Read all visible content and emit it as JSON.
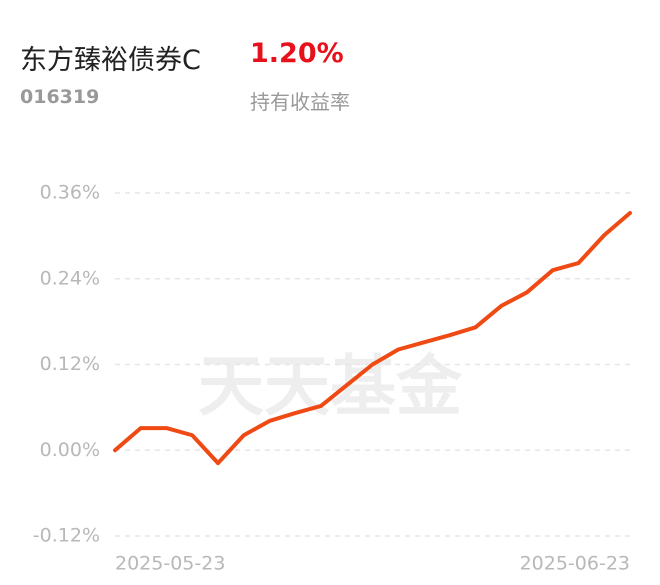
{
  "header": {
    "title": "东方臻裕债券C",
    "return": "1.20%",
    "code": "016319",
    "return_label": "持有收益率"
  },
  "chart_data": {
    "type": "line",
    "watermark": "天天基金",
    "categories": [
      "2025-05-23",
      null,
      null,
      null,
      null,
      null,
      null,
      null,
      null,
      null,
      null,
      null,
      null,
      null,
      null,
      null,
      null,
      null,
      null,
      null,
      "2025-06-23"
    ],
    "series": [
      {
        "color": "#f04a14",
        "values": [
          0,
          0.031,
          0.031,
          0.021,
          -0.018,
          0.021,
          0.041,
          0.052,
          0.062,
          0.091,
          0.12,
          0.141,
          0.151,
          0.161,
          0.172,
          0.202,
          0.221,
          0.252,
          0.262,
          0.301,
          0.332
        ]
      }
    ],
    "ylim": [
      -0.12,
      0.36
    ],
    "yticks": [
      {
        "value": -0.12,
        "label": "-0.12%"
      },
      {
        "value": 0,
        "label": "0.00%"
      },
      {
        "value": 0.12,
        "label": "0.12%"
      },
      {
        "value": 0.24,
        "label": "0.24%"
      },
      {
        "value": 0.36,
        "label": "0.36%"
      }
    ],
    "grid": true
  }
}
